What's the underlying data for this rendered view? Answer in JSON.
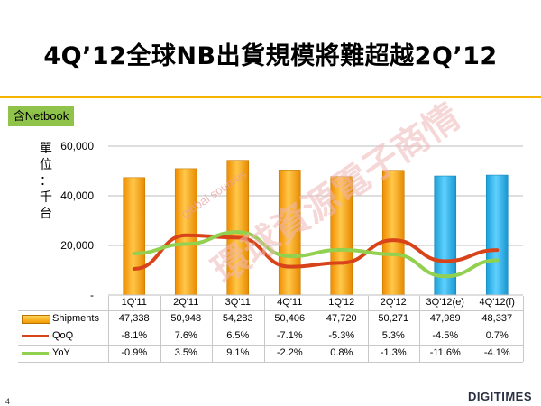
{
  "page": {
    "title": "4Q’12全球NB出貨規模將難超越2Q’12",
    "badge": "含Netbook",
    "unit_chars": [
      "單",
      "位",
      "：",
      "千",
      "台"
    ],
    "page_number": "4",
    "logo_text": "DIGITIMES",
    "watermark_small": "global sources",
    "watermark_big": "環球資源電子商情"
  },
  "chart_data": {
    "type": "bar",
    "categories": [
      "1Q'11",
      "2Q'11",
      "3Q'11",
      "4Q'11",
      "1Q'12",
      "2Q'12",
      "3Q'12(e)",
      "4Q'12(f)"
    ],
    "y_ticks": [
      "60,000",
      "40,000",
      "20,000",
      "-"
    ],
    "ylim": [
      0,
      60000
    ],
    "grid": true,
    "series": [
      {
        "name": "Shipments",
        "kind": "bar",
        "values": [
          47338,
          50948,
          54283,
          50406,
          47720,
          50271,
          47989,
          48337
        ],
        "labels": [
          "47,338",
          "50,948",
          "54,283",
          "50,406",
          "47,720",
          "50,271",
          "47,989",
          "48,337"
        ],
        "colors": [
          "#f5a000",
          "#f5a000",
          "#f5a000",
          "#f5a000",
          "#f5a000",
          "#f5a000",
          "#29b6ec",
          "#29b6ec"
        ]
      },
      {
        "name": "QoQ",
        "kind": "line",
        "color": "#d9431a",
        "values": [
          -8.1,
          7.6,
          6.5,
          -7.1,
          -5.3,
          5.3,
          -4.5,
          0.7
        ],
        "labels": [
          "-8.1%",
          "7.6%",
          "6.5%",
          "-7.1%",
          "-5.3%",
          "5.3%",
          "-4.5%",
          "0.7%"
        ]
      },
      {
        "name": "YoY",
        "kind": "line",
        "color": "#92d050",
        "values": [
          -0.9,
          3.5,
          9.1,
          -2.2,
          0.8,
          -1.3,
          -11.6,
          -4.1
        ],
        "labels": [
          "-0.9%",
          "3.5%",
          "9.1%",
          "-2.2%",
          "0.8%",
          "-1.3%",
          "-11.6%",
          "-4.1%"
        ]
      }
    ]
  }
}
